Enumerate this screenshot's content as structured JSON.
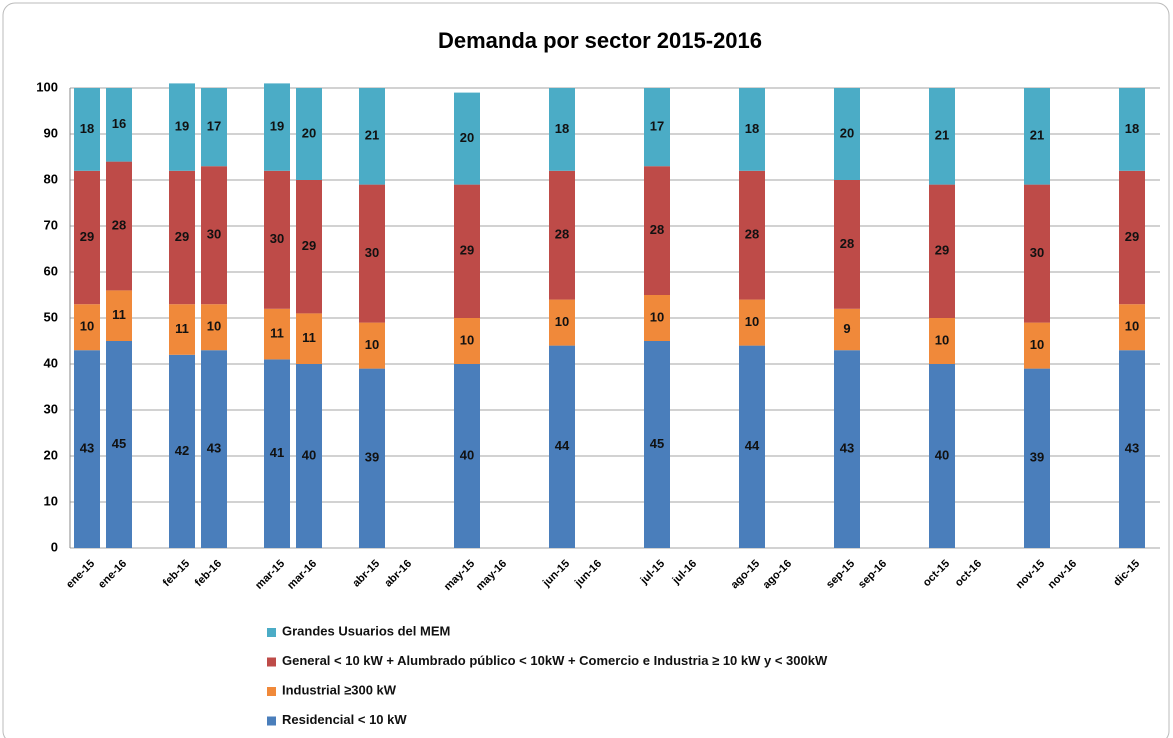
{
  "chart_data": {
    "type": "stacked_bar",
    "title": "Demanda por sector 2015-2016",
    "categories": [
      "ene-15",
      "ene-16",
      "feb-15",
      "feb-16",
      "mar-15",
      "mar-16",
      "abr-15",
      "abr-16",
      "may-15",
      "may-16",
      "jun-15",
      "jun-16",
      "jul-15",
      "jul-16",
      "ago-15",
      "ago-16",
      "sep-15",
      "sep-16",
      "oct-15",
      "oct-16",
      "nov-15",
      "nov-16",
      "dic-15"
    ],
    "series": [
      {
        "name": "Residencial < 10 kW",
        "color": "#4a7ebb",
        "values": [
          43,
          45,
          42,
          43,
          41,
          40,
          39,
          null,
          40,
          null,
          44,
          null,
          45,
          null,
          44,
          null,
          43,
          null,
          40,
          null,
          39,
          null,
          43
        ]
      },
      {
        "name": "Industrial ≥300 kW",
        "color": "#f0893a",
        "values": [
          10,
          11,
          11,
          10,
          11,
          11,
          10,
          null,
          10,
          null,
          10,
          null,
          10,
          null,
          10,
          null,
          9,
          null,
          10,
          null,
          10,
          null,
          10
        ]
      },
      {
        "name": "General < 10 kW  +  Alumbrado público < 10kW  +  Comercio e Industria  ≥ 10 kW y < 300kW",
        "color": "#be4b48",
        "values": [
          29,
          28,
          29,
          30,
          30,
          29,
          30,
          null,
          29,
          null,
          28,
          null,
          28,
          null,
          28,
          null,
          28,
          null,
          29,
          null,
          30,
          null,
          29
        ]
      },
      {
        "name": "Grandes Usuarios del MEM",
        "color": "#4bacc6",
        "values": [
          18,
          16,
          19,
          17,
          19,
          20,
          21,
          null,
          20,
          null,
          18,
          null,
          17,
          null,
          18,
          null,
          20,
          null,
          21,
          null,
          21,
          null,
          18
        ]
      }
    ],
    "ylim": [
      0,
      100
    ],
    "yticks": [
      0,
      10,
      20,
      30,
      40,
      50,
      60,
      70,
      80,
      90,
      100
    ],
    "grid": true
  }
}
